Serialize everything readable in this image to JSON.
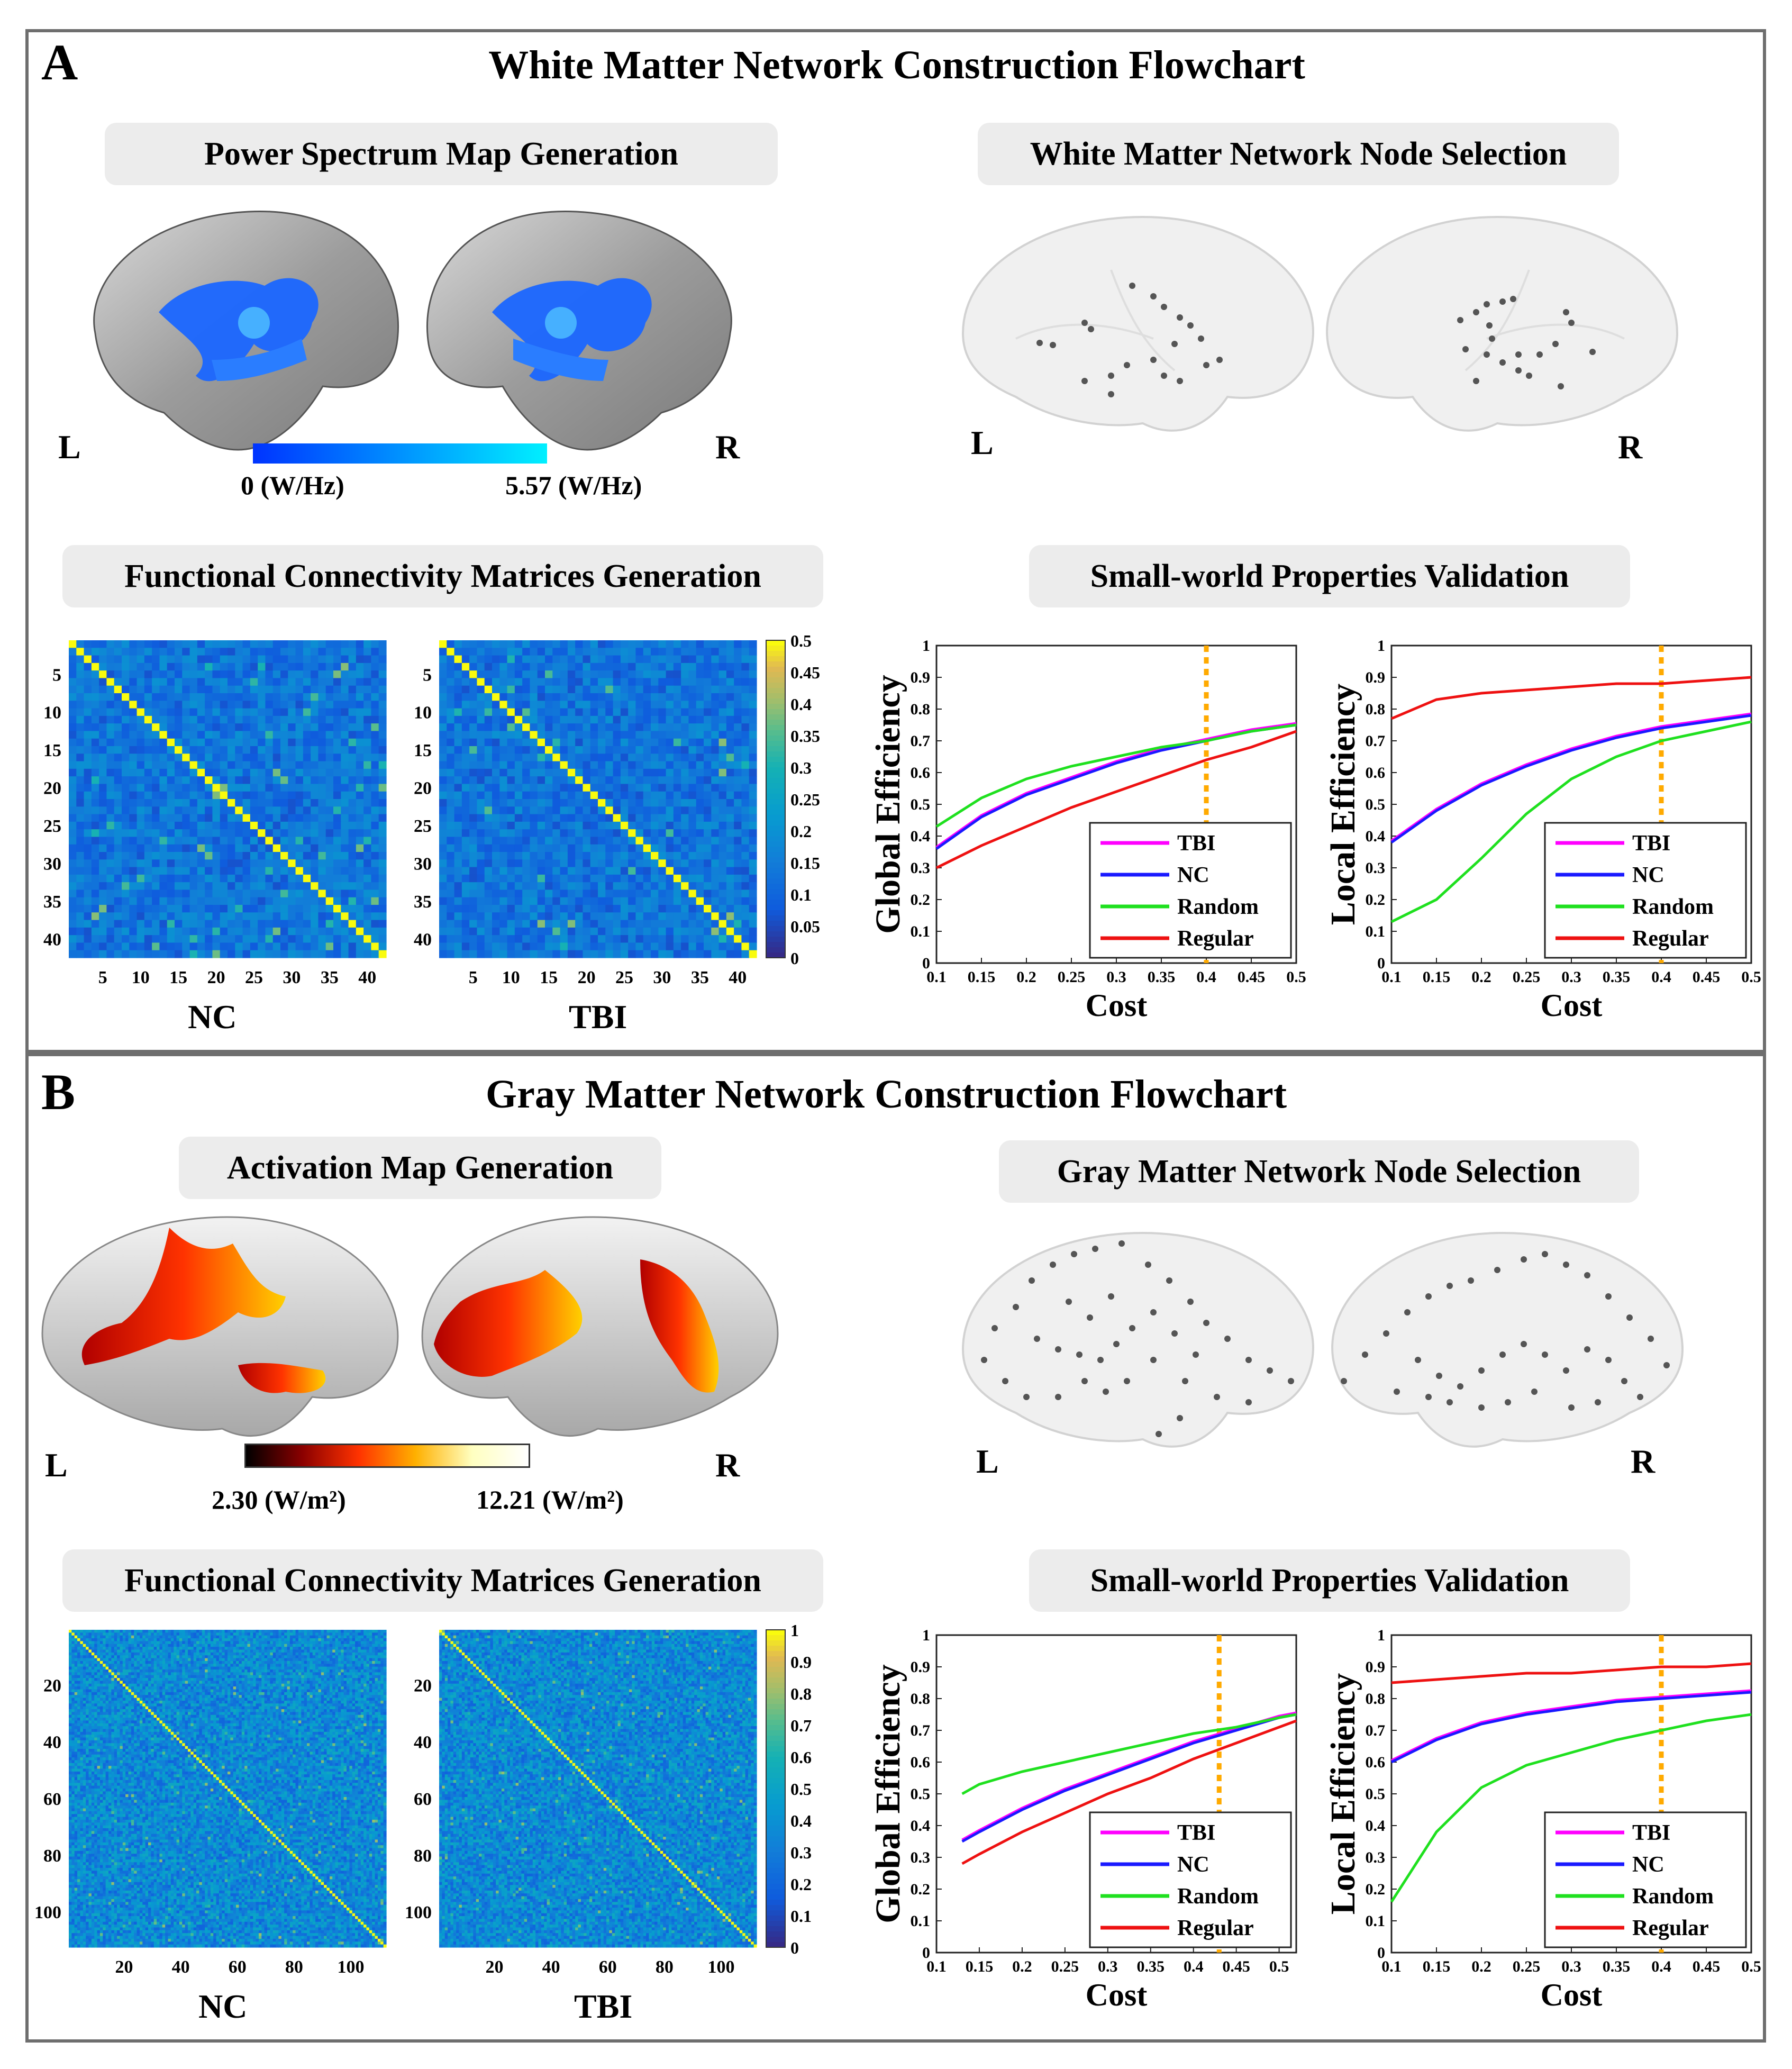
{
  "colors": {
    "border": "#6e6e6e",
    "tbi": "#ff00ff",
    "nc": "#1a1aff",
    "random": "#1fe01f",
    "regular": "#ee1111",
    "threshold": "#ffaa00"
  },
  "panelA": {
    "letter": "A",
    "title": "White Matter Network Construction Flowchart",
    "map_title": "Power Spectrum Map Generation",
    "colorbar_min": "0 (W/Hz)",
    "colorbar_max": "5.57 (W/Hz)",
    "node_title": "White Matter Network Node Selection",
    "left": "L",
    "right": "R",
    "fc_title": "Functional Connectivity Matrices Generation",
    "sw_title": "Small-world Properties Validation",
    "nc_label": "NC",
    "tbi_label": "TBI"
  },
  "panelB": {
    "letter": "B",
    "title": "Gray Matter Network Construction Flowchart",
    "map_title": "Activation Map Generation",
    "colorbar_min": "2.30 (W/m²)",
    "colorbar_max": "12.21 (W/m²)",
    "node_title": "Gray Matter Network Node Selection",
    "left": "L",
    "right": "R",
    "fc_title": "Functional Connectivity Matrices Generation",
    "sw_title": "Small-world Properties Validation",
    "nc_label": "NC",
    "tbi_label": "TBI"
  },
  "chart_data": [
    {
      "id": "A-matrix-NC",
      "type": "heatmap",
      "title": "NC",
      "n": 42,
      "xticks": [
        "5",
        "10",
        "15",
        "20",
        "25",
        "30",
        "35",
        "40"
      ],
      "yticks": [
        "5",
        "10",
        "15",
        "20",
        "25",
        "30",
        "35",
        "40"
      ],
      "colorbar": [
        "0.5",
        "0.45",
        "0.4",
        "0.35",
        "0.3",
        "0.25",
        "0.2",
        "0.15",
        "0.1",
        "0.05",
        "0"
      ]
    },
    {
      "id": "A-matrix-TBI",
      "type": "heatmap",
      "title": "TBI",
      "n": 42,
      "xticks": [
        "5",
        "10",
        "15",
        "20",
        "25",
        "30",
        "35",
        "40"
      ],
      "yticks": [
        "5",
        "10",
        "15",
        "20",
        "25",
        "30",
        "35",
        "40"
      ],
      "colorbar": [
        "0.5",
        "0.45",
        "0.4",
        "0.35",
        "0.3",
        "0.25",
        "0.2",
        "0.15",
        "0.1",
        "0.05",
        "0"
      ]
    },
    {
      "id": "A-global",
      "type": "line",
      "xlabel": "Cost",
      "ylabel": "Global Efficiency",
      "xlim": [
        0.1,
        0.5
      ],
      "ylim": [
        0,
        1
      ],
      "xticks": [
        "0.1",
        "0.15",
        "0.2",
        "0.25",
        "0.3",
        "0.35",
        "0.4",
        "0.45",
        "0.5"
      ],
      "yticks": [
        "0",
        "0.1",
        "0.2",
        "0.3",
        "0.4",
        "0.5",
        "0.6",
        "0.7",
        "0.8",
        "0.9",
        "1"
      ],
      "threshold": 0.4,
      "x": [
        0.1,
        0.15,
        0.2,
        0.25,
        0.3,
        0.35,
        0.4,
        0.45,
        0.5
      ],
      "series": [
        {
          "name": "TBI",
          "values": [
            0.36,
            0.46,
            0.53,
            0.58,
            0.63,
            0.67,
            0.7,
            0.73,
            0.75
          ]
        },
        {
          "name": "NC",
          "values": [
            0.36,
            0.46,
            0.53,
            0.58,
            0.63,
            0.67,
            0.7,
            0.73,
            0.75
          ]
        },
        {
          "name": "Random",
          "values": [
            0.43,
            0.52,
            0.58,
            0.62,
            0.65,
            0.68,
            0.7,
            0.73,
            0.75
          ]
        },
        {
          "name": "Regular",
          "values": [
            0.3,
            0.37,
            0.43,
            0.49,
            0.54,
            0.59,
            0.64,
            0.68,
            0.73
          ]
        }
      ]
    },
    {
      "id": "A-local",
      "type": "line",
      "xlabel": "Cost",
      "ylabel": "Local Efficiency",
      "xlim": [
        0.1,
        0.5
      ],
      "ylim": [
        0,
        1
      ],
      "xticks": [
        "0.1",
        "0.15",
        "0.2",
        "0.25",
        "0.3",
        "0.35",
        "0.4",
        "0.45",
        "0.5"
      ],
      "yticks": [
        "0",
        "0.1",
        "0.2",
        "0.3",
        "0.4",
        "0.5",
        "0.6",
        "0.7",
        "0.8",
        "0.9",
        "1"
      ],
      "threshold": 0.4,
      "x": [
        0.1,
        0.15,
        0.2,
        0.25,
        0.3,
        0.35,
        0.4,
        0.45,
        0.5
      ],
      "series": [
        {
          "name": "TBI",
          "values": [
            0.38,
            0.48,
            0.56,
            0.62,
            0.67,
            0.71,
            0.74,
            0.76,
            0.78
          ]
        },
        {
          "name": "NC",
          "values": [
            0.38,
            0.48,
            0.56,
            0.62,
            0.67,
            0.71,
            0.74,
            0.76,
            0.78
          ]
        },
        {
          "name": "Random",
          "values": [
            0.13,
            0.2,
            0.33,
            0.47,
            0.58,
            0.65,
            0.7,
            0.73,
            0.76
          ]
        },
        {
          "name": "Regular",
          "values": [
            0.77,
            0.83,
            0.85,
            0.86,
            0.87,
            0.88,
            0.88,
            0.89,
            0.9
          ]
        }
      ]
    },
    {
      "id": "B-matrix-NC",
      "type": "heatmap",
      "title": "NC",
      "n": 112,
      "xticks": [
        "20",
        "40",
        "60",
        "80",
        "100"
      ],
      "yticks": [
        "20",
        "40",
        "60",
        "80",
        "100"
      ],
      "colorbar": [
        "1",
        "0.9",
        "0.8",
        "0.7",
        "0.6",
        "0.5",
        "0.4",
        "0.3",
        "0.2",
        "0.1",
        "0"
      ]
    },
    {
      "id": "B-matrix-TBI",
      "type": "heatmap",
      "title": "TBI",
      "n": 112,
      "xticks": [
        "20",
        "40",
        "60",
        "80",
        "100"
      ],
      "yticks": [
        "20",
        "40",
        "60",
        "80",
        "100"
      ],
      "colorbar": [
        "1",
        "0.9",
        "0.8",
        "0.7",
        "0.6",
        "0.5",
        "0.4",
        "0.3",
        "0.2",
        "0.1",
        "0"
      ]
    },
    {
      "id": "B-global",
      "type": "line",
      "xlabel": "Cost",
      "ylabel": "Global Efficiency",
      "xlim": [
        0.1,
        0.52
      ],
      "ylim": [
        0,
        1
      ],
      "xticks": [
        "0.1",
        "0.15",
        "0.2",
        "0.25",
        "0.3",
        "0.35",
        "0.4",
        "0.45",
        "0.5"
      ],
      "yticks": [
        "0",
        "0.1",
        "0.2",
        "0.3",
        "0.4",
        "0.5",
        "0.6",
        "0.7",
        "0.8",
        "0.9",
        "1"
      ],
      "threshold": 0.43,
      "x": [
        0.13,
        0.15,
        0.2,
        0.25,
        0.3,
        0.35,
        0.4,
        0.45,
        0.5,
        0.52
      ],
      "series": [
        {
          "name": "TBI",
          "values": [
            0.35,
            0.38,
            0.45,
            0.51,
            0.56,
            0.61,
            0.66,
            0.7,
            0.74,
            0.75
          ]
        },
        {
          "name": "NC",
          "values": [
            0.35,
            0.38,
            0.45,
            0.51,
            0.56,
            0.61,
            0.66,
            0.7,
            0.74,
            0.75
          ]
        },
        {
          "name": "Random",
          "values": [
            0.5,
            0.53,
            0.57,
            0.6,
            0.63,
            0.66,
            0.69,
            0.71,
            0.74,
            0.75
          ]
        },
        {
          "name": "Regular",
          "values": [
            0.28,
            0.31,
            0.38,
            0.44,
            0.5,
            0.55,
            0.61,
            0.66,
            0.71,
            0.73
          ]
        }
      ]
    },
    {
      "id": "B-local",
      "type": "line",
      "xlabel": "Cost",
      "ylabel": "Local Efficiency",
      "xlim": [
        0.1,
        0.5
      ],
      "ylim": [
        0,
        1
      ],
      "xticks": [
        "0.1",
        "0.15",
        "0.2",
        "0.25",
        "0.3",
        "0.35",
        "0.4",
        "0.45",
        "0.5"
      ],
      "yticks": [
        "0",
        "0.1",
        "0.2",
        "0.3",
        "0.4",
        "0.5",
        "0.6",
        "0.7",
        "0.8",
        "0.9",
        "1"
      ],
      "threshold": 0.4,
      "x": [
        0.1,
        0.15,
        0.2,
        0.25,
        0.3,
        0.35,
        0.4,
        0.45,
        0.5
      ],
      "series": [
        {
          "name": "TBI",
          "values": [
            0.6,
            0.67,
            0.72,
            0.75,
            0.77,
            0.79,
            0.8,
            0.81,
            0.82
          ]
        },
        {
          "name": "NC",
          "values": [
            0.6,
            0.67,
            0.72,
            0.75,
            0.77,
            0.79,
            0.8,
            0.81,
            0.82
          ]
        },
        {
          "name": "Random",
          "values": [
            0.16,
            0.38,
            0.52,
            0.59,
            0.63,
            0.67,
            0.7,
            0.73,
            0.75
          ]
        },
        {
          "name": "Regular",
          "values": [
            0.85,
            0.86,
            0.87,
            0.88,
            0.88,
            0.89,
            0.9,
            0.9,
            0.91
          ]
        }
      ]
    }
  ]
}
